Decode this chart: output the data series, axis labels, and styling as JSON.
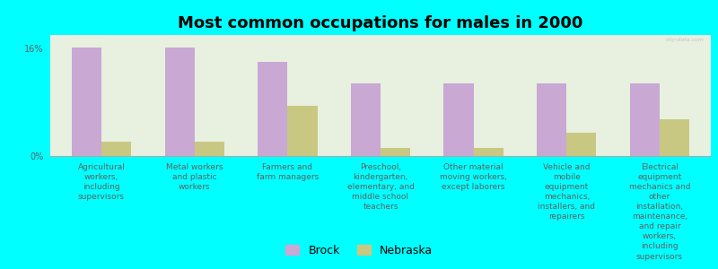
{
  "title": "Most common occupations for males in 2000",
  "categories": [
    "Agricultural\nworkers,\nincluding\nsupervisors",
    "Metal workers\nand plastic\nworkers",
    "Farmers and\nfarm managers",
    "Preschool,\nkindergarten,\nelementary, and\nmiddle school\nteachers",
    "Other material\nmoving workers,\nexcept laborers",
    "Vehicle and\nmobile\nequipment\nmechanics,\ninstallers, and\nrepairers",
    "Electrical\nequipment\nmechanics and\nother\ninstallation,\nmaintenance,\nand repair\nworkers,\nincluding\nsupervisors"
  ],
  "brock_values": [
    16.13,
    16.13,
    13.98,
    10.75,
    10.75,
    10.75,
    10.75
  ],
  "nebraska_values": [
    2.2,
    2.2,
    7.5,
    1.2,
    1.2,
    3.5,
    5.5
  ],
  "brock_color": "#c9a8d4",
  "nebraska_color": "#c8c882",
  "background_color": "#00ffff",
  "plot_bg_color": "#e8f0e0",
  "ylim": [
    0,
    18
  ],
  "yticks": [
    0,
    16
  ],
  "ytick_labels": [
    "0%",
    "16%"
  ],
  "bar_width": 0.32,
  "title_fontsize": 13,
  "tick_fontsize": 6.5,
  "legend_labels": [
    "Brock",
    "Nebraska"
  ],
  "legend_fontsize": 9,
  "watermark": "city-data.com"
}
